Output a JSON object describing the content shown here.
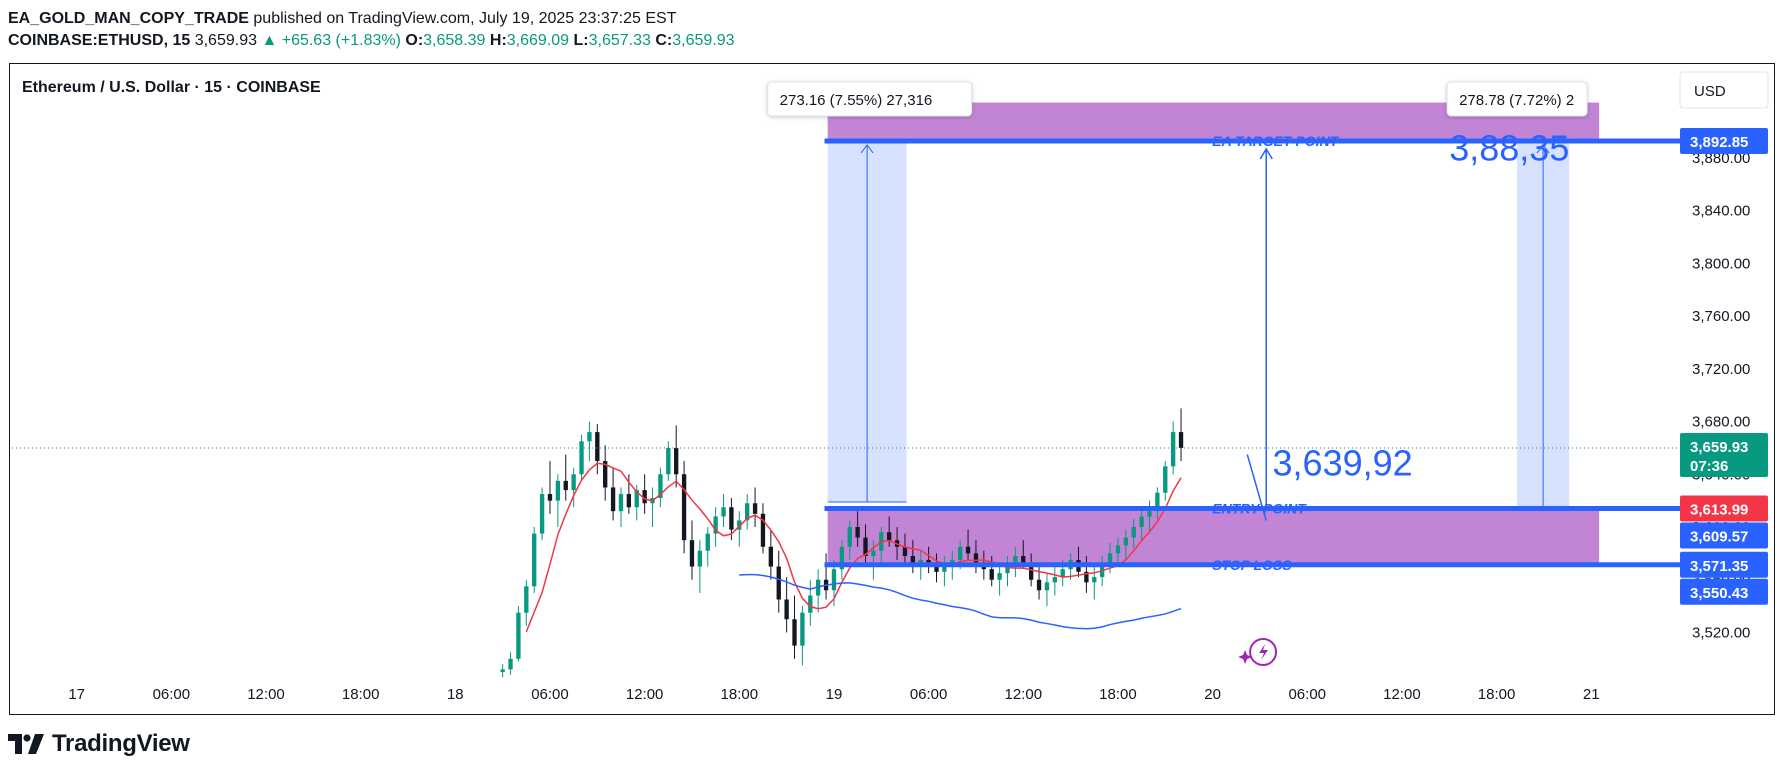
{
  "header": {
    "publisher": "EA_GOLD_MAN_COPY_TRADE",
    "published_text": "published on TradingView.com, July 19, 2025 23:37:25 EST",
    "symbol": "COINBASE:ETHUSD, 15",
    "last": "3,659.93",
    "change": "▲ +65.63 (+1.83%)",
    "o_label": "O:",
    "o": "3,658.39",
    "h_label": "H:",
    "h": "3,669.09",
    "l_label": "L:",
    "l": "3,657.33",
    "c_label": "C:",
    "c": "3,659.93"
  },
  "chart_title": "Ethereum / U.S. Dollar · 15 · COINBASE",
  "currency": "USD",
  "footer": {
    "brand": "TradingView"
  },
  "colors": {
    "up": "#089981",
    "down": "#131722",
    "accent": "#2962ff",
    "zone": "#c285d6",
    "projection": "#d6e2ff",
    "sma_red": "#f23645",
    "sma_blue": "#2962ff"
  },
  "chart_data": {
    "type": "candlestick",
    "ylim": [
      3490,
      3930
    ],
    "y_ticks": [
      "3,520.00",
      "3,560.00",
      "3,600.00",
      "3,640.00",
      "3,680.00",
      "3,720.00",
      "3,760.00",
      "3,800.00",
      "3,840.00",
      "3,880.00"
    ],
    "y_tick_values": [
      3520,
      3560,
      3600,
      3640,
      3680,
      3720,
      3760,
      3800,
      3840,
      3880
    ],
    "x_ticks": [
      "17",
      "06:00",
      "12:00",
      "18:00",
      "18",
      "06:00",
      "12:00",
      "18:00",
      "19",
      "06:00",
      "12:00",
      "18:00",
      "20",
      "06:00",
      "12:00",
      "18:00",
      "21"
    ],
    "x_tick_hours": [
      0,
      6,
      12,
      18,
      24,
      30,
      36,
      42,
      48,
      54,
      60,
      66,
      72,
      78,
      84,
      90,
      96
    ],
    "x_range_hours": [
      -4.1,
      101.5
    ],
    "price_lines": [
      {
        "name": "EA TARGET POINT",
        "price": 3892.85,
        "label": "3,892.85",
        "color": "#2962ff"
      },
      {
        "name": "ENTRY POINT",
        "price": 3613.99,
        "label": "3,613.99",
        "color": "#2962ff",
        "tag_color": "#f23645"
      },
      {
        "name": "STOP LOSS",
        "price": 3571.35,
        "label": "3,571.35",
        "color": "#2962ff"
      }
    ],
    "price_tags": [
      {
        "label": "3,892.85",
        "price": 3892.85,
        "color": "#2962ff"
      },
      {
        "label": "3,659.93",
        "sub": "07:36",
        "price": 3659.93,
        "color": "#089981"
      },
      {
        "label": "3,613.99",
        "price": 3613.99,
        "color": "#f23645"
      },
      {
        "label": "3,609.57",
        "price": 3609.57,
        "color": "#2962ff"
      },
      {
        "label": "3,571.35",
        "price": 3571.35,
        "color": "#2962ff"
      },
      {
        "label": "3,550.43",
        "price": 3550.43,
        "color": "#2962ff"
      }
    ],
    "zones": [
      {
        "name": "target-zone",
        "from": 3892.85,
        "to": 3922,
        "x_from_hours": 47.6,
        "x_to_hours": 96.5
      },
      {
        "name": "entry-zone",
        "from": 3571.35,
        "to": 3613.99,
        "x_from_hours": 47.6,
        "x_to_hours": 96.5
      }
    ],
    "projections": [
      {
        "name": "left-projection",
        "from": 3619,
        "to": 3892.85,
        "x_from_hours": 47.6,
        "x_to_hours": 52.6,
        "callout": "273.16 (7.55%) 27,316"
      },
      {
        "name": "right-projection",
        "from": 3613.99,
        "to": 3892.85,
        "x_from_hours": 91.3,
        "x_to_hours": 94.6,
        "callout": "278.78 (7.72%) 2"
      }
    ],
    "annotations": [
      {
        "text": "3,88,35",
        "price": 3878,
        "x_hours": 87
      },
      {
        "text": "3,639,92",
        "price": 3639,
        "x_hours": 75.8
      }
    ],
    "current_price": 3659.93,
    "candles_ohlc_hourly": [
      [
        27.0,
        3490,
        3496,
        3486,
        3492
      ],
      [
        27.5,
        3492,
        3505,
        3488,
        3500
      ],
      [
        28.0,
        3500,
        3540,
        3498,
        3535
      ],
      [
        28.5,
        3535,
        3560,
        3525,
        3555
      ],
      [
        29.0,
        3555,
        3600,
        3550,
        3595
      ],
      [
        29.5,
        3595,
        3630,
        3590,
        3625
      ],
      [
        30.0,
        3625,
        3650,
        3610,
        3620
      ],
      [
        30.5,
        3620,
        3640,
        3600,
        3635
      ],
      [
        31.0,
        3635,
        3655,
        3620,
        3628
      ],
      [
        31.5,
        3628,
        3645,
        3615,
        3640
      ],
      [
        32.0,
        3640,
        3670,
        3635,
        3665
      ],
      [
        32.5,
        3665,
        3680,
        3650,
        3672
      ],
      [
        33.0,
        3672,
        3678,
        3640,
        3650
      ],
      [
        33.5,
        3650,
        3662,
        3620,
        3630
      ],
      [
        34.0,
        3630,
        3645,
        3605,
        3612
      ],
      [
        34.5,
        3612,
        3630,
        3600,
        3625
      ],
      [
        35.0,
        3625,
        3640,
        3610,
        3615
      ],
      [
        35.5,
        3615,
        3632,
        3605,
        3628
      ],
      [
        36.0,
        3628,
        3640,
        3610,
        3618
      ],
      [
        36.5,
        3618,
        3630,
        3600,
        3622
      ],
      [
        37.0,
        3622,
        3645,
        3615,
        3640
      ],
      [
        37.5,
        3640,
        3665,
        3635,
        3660
      ],
      [
        38.0,
        3660,
        3677,
        3630,
        3640
      ],
      [
        38.5,
        3640,
        3650,
        3580,
        3590
      ],
      [
        39.0,
        3590,
        3605,
        3560,
        3570
      ],
      [
        39.5,
        3570,
        3590,
        3550,
        3582
      ],
      [
        40.0,
        3582,
        3600,
        3570,
        3595
      ],
      [
        40.5,
        3595,
        3615,
        3585,
        3608
      ],
      [
        41.0,
        3608,
        3625,
        3600,
        3615
      ],
      [
        41.5,
        3615,
        3622,
        3590,
        3598
      ],
      [
        42.0,
        3598,
        3612,
        3585,
        3605
      ],
      [
        42.5,
        3605,
        3625,
        3598,
        3618
      ],
      [
        43.0,
        3618,
        3630,
        3600,
        3610
      ],
      [
        43.5,
        3610,
        3618,
        3580,
        3585
      ],
      [
        44.0,
        3585,
        3598,
        3560,
        3570
      ],
      [
        44.5,
        3570,
        3582,
        3535,
        3545
      ],
      [
        45.0,
        3545,
        3562,
        3520,
        3530
      ],
      [
        45.5,
        3530,
        3548,
        3500,
        3510
      ],
      [
        46.0,
        3510,
        3540,
        3495,
        3535
      ],
      [
        46.5,
        3535,
        3560,
        3525,
        3548
      ],
      [
        47.0,
        3548,
        3568,
        3535,
        3560
      ],
      [
        47.5,
        3560,
        3580,
        3545,
        3552
      ],
      [
        48.0,
        3552,
        3575,
        3540,
        3568
      ],
      [
        48.5,
        3568,
        3590,
        3560,
        3585
      ],
      [
        49.0,
        3585,
        3605,
        3575,
        3600
      ],
      [
        49.5,
        3600,
        3612,
        3585,
        3592
      ],
      [
        50.0,
        3592,
        3602,
        3570,
        3578
      ],
      [
        50.5,
        3578,
        3590,
        3560,
        3582
      ],
      [
        51.0,
        3582,
        3600,
        3572,
        3596
      ],
      [
        51.5,
        3596,
        3608,
        3585,
        3590
      ],
      [
        52.0,
        3590,
        3600,
        3575,
        3585
      ],
      [
        52.5,
        3585,
        3595,
        3572,
        3578
      ],
      [
        53.0,
        3578,
        3590,
        3565,
        3570
      ],
      [
        53.5,
        3570,
        3582,
        3560,
        3575
      ],
      [
        54.0,
        3575,
        3585,
        3565,
        3572
      ],
      [
        54.5,
        3572,
        3580,
        3558,
        3566
      ],
      [
        55.0,
        3566,
        3578,
        3555,
        3570
      ],
      [
        55.5,
        3570,
        3582,
        3560,
        3575
      ],
      [
        56.0,
        3575,
        3590,
        3568,
        3585
      ],
      [
        56.5,
        3585,
        3598,
        3575,
        3580
      ],
      [
        57.0,
        3580,
        3590,
        3565,
        3572
      ],
      [
        57.5,
        3572,
        3582,
        3560,
        3568
      ],
      [
        58.0,
        3568,
        3578,
        3555,
        3560
      ],
      [
        58.5,
        3560,
        3572,
        3548,
        3565
      ],
      [
        59.0,
        3565,
        3578,
        3555,
        3570
      ],
      [
        59.5,
        3570,
        3585,
        3562,
        3578
      ],
      [
        60.0,
        3578,
        3590,
        3568,
        3572
      ],
      [
        60.5,
        3572,
        3580,
        3555,
        3560
      ],
      [
        61.0,
        3560,
        3572,
        3545,
        3552
      ],
      [
        61.5,
        3552,
        3565,
        3540,
        3558
      ],
      [
        62.0,
        3558,
        3570,
        3548,
        3562
      ],
      [
        62.5,
        3562,
        3575,
        3555,
        3568
      ],
      [
        63.0,
        3568,
        3580,
        3560,
        3575
      ],
      [
        63.5,
        3575,
        3585,
        3562,
        3566
      ],
      [
        64.0,
        3566,
        3578,
        3550,
        3558
      ],
      [
        64.5,
        3558,
        3570,
        3545,
        3562
      ],
      [
        65.0,
        3562,
        3578,
        3555,
        3572
      ],
      [
        65.5,
        3572,
        3588,
        3565,
        3580
      ],
      [
        66.0,
        3580,
        3592,
        3570,
        3586
      ],
      [
        66.5,
        3586,
        3598,
        3575,
        3592
      ],
      [
        67.0,
        3592,
        3606,
        3584,
        3600
      ],
      [
        67.5,
        3600,
        3614,
        3590,
        3608
      ],
      [
        68.0,
        3608,
        3620,
        3596,
        3612
      ],
      [
        68.5,
        3612,
        3630,
        3606,
        3626
      ],
      [
        69.0,
        3626,
        3650,
        3620,
        3646
      ],
      [
        69.5,
        3646,
        3680,
        3640,
        3672
      ],
      [
        70.0,
        3672,
        3690,
        3650,
        3660
      ]
    ]
  }
}
